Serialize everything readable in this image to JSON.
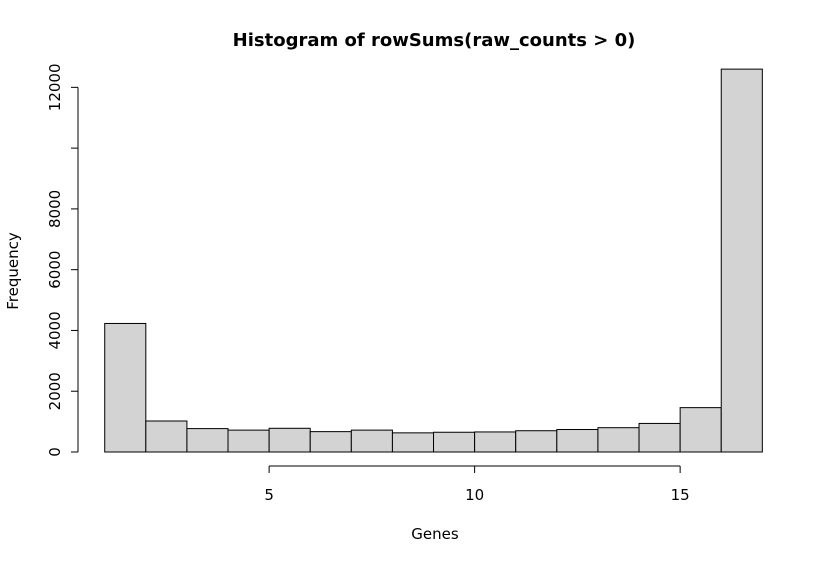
{
  "chart_data": {
    "type": "bar",
    "title": "Histogram of rowSums(raw_counts > 0)",
    "xlabel": "Genes",
    "ylabel": "Frequency",
    "bin_edges": [
      1,
      2,
      3,
      4,
      5,
      6,
      7,
      8,
      9,
      10,
      11,
      12,
      13,
      14,
      15,
      16,
      17
    ],
    "values": [
      4230,
      1020,
      770,
      720,
      780,
      670,
      720,
      630,
      650,
      660,
      700,
      740,
      800,
      940,
      1460,
      12600
    ],
    "xlim": [
      0.35,
      17.6
    ],
    "ylim": [
      0,
      12900
    ],
    "x_ticks": [
      5,
      10,
      15
    ],
    "x_tick_labels": [
      "5",
      "10",
      "15"
    ],
    "y_ticks": [
      0,
      2000,
      4000,
      6000,
      8000,
      10000,
      12000
    ],
    "y_tick_labels": [
      "0",
      "2000",
      "4000",
      "6000",
      "8000",
      "",
      "12000"
    ],
    "bar_fill": "#d3d3d3",
    "grid": false,
    "legend": "none"
  }
}
